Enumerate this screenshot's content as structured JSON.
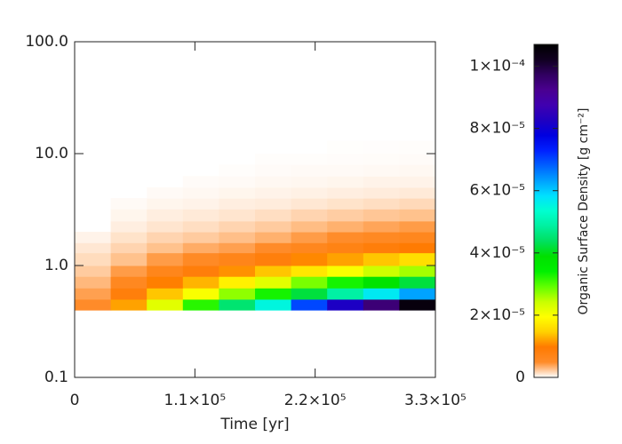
{
  "chart_data": {
    "type": "heatmap",
    "xlabel": "Time [yr]",
    "colorbar_label": "Organic Surface Density [g cm⁻²]",
    "xlim": [
      0,
      330000
    ],
    "xticks": [
      0,
      {
        "value": 110000,
        "label": "1.1×10⁵"
      },
      {
        "value": 220000,
        "label": "2.2×10⁵"
      },
      {
        "value": 330000,
        "label": "3.3×10⁵"
      }
    ],
    "ylim": [
      0.1,
      100
    ],
    "yscale": "log",
    "yticks": [
      0.1,
      {
        "value": 1,
        "label": "1.0"
      },
      {
        "value": 10,
        "label": "10.0"
      },
      {
        "value": 100,
        "label": "100.0"
      }
    ],
    "zlim": [
      0,
      0.000107
    ],
    "zticks": [
      0,
      {
        "value": 2e-05,
        "label": "2×10⁻⁵"
      },
      {
        "value": 4e-05,
        "label": "4×10⁻⁵"
      },
      {
        "value": 6e-05,
        "label": "6×10⁻⁵"
      },
      {
        "value": 8e-05,
        "label": "8×10⁻⁵"
      },
      {
        "value": 0.0001,
        "label": "1×10⁻⁴"
      }
    ],
    "colormap": [
      "#ffffff",
      "#ff8c2a",
      "#ff7a00",
      "#ffd000",
      "#ffff00",
      "#c8ff00",
      "#60ff00",
      "#00f000",
      "#00e000",
      "#00e060",
      "#00f0a0",
      "#00ffd0",
      "#00e0ff",
      "#00a0ff",
      "#0060ff",
      "#0020ff",
      "#0000e0",
      "#2000c0",
      "#4000b0",
      "#4a0090",
      "#300060",
      "#100020",
      "#000000"
    ],
    "x_edges": [
      0,
      33000,
      66000,
      99000,
      132000,
      165000,
      198000,
      231000,
      264000,
      297000,
      330000
    ],
    "y_edges": [
      0.4,
      0.5,
      0.63,
      0.8,
      1.0,
      1.3,
      1.6,
      2.0,
      2.5,
      3.2,
      4.0,
      5.0,
      6.3,
      8.0,
      10,
      13
    ],
    "z": [
      [
        5e-06,
        1.2e-05,
        2.2e-05,
        3.2e-05,
        4.5e-05,
        5.5e-05,
        7e-05,
        8.2e-05,
        9.5e-05,
        0.000105
      ],
      [
        4e-06,
        8.4e-06,
        1.4e-05,
        2e-05,
        2.7e-05,
        3.3e-05,
        4.2e-05,
        4.9e-05,
        5.7e-05,
        6.3e-05
      ],
      [
        3e-06,
        6e-06,
        1e-05,
        1.3e-05,
        1.8e-05,
        2.2e-05,
        2.8e-05,
        3.3e-05,
        3.8e-05,
        4.2e-05
      ],
      [
        2.2e-06,
        4.2e-06,
        6.6e-06,
        8.6e-06,
        1.1e-05,
        1.4e-05,
        1.7e-05,
        2e-05,
        2.4e-05,
        2.6e-05
      ],
      [
        1.5e-06,
        2.6e-06,
        4.2e-06,
        5.4e-06,
        6.8e-06,
        8.3e-06,
        1.05e-05,
        1.2e-05,
        1.4e-05,
        1.6e-05
      ],
      [
        1e-06,
        1.8e-06,
        2.6e-06,
        3.5e-06,
        4e-06,
        5e-06,
        6.3e-06,
        7.4e-06,
        8.6e-06,
        9.5e-06
      ],
      [
        5e-07,
        1.2e-06,
        1.8e-06,
        2.2e-06,
        2.7e-06,
        3.3e-06,
        4.2e-06,
        4.9e-06,
        5.7e-06,
        6.3e-06
      ],
      [
        null,
        7e-07,
        1.1e-06,
        1.4e-06,
        1.8e-06,
        2.2e-06,
        2.8e-06,
        3.3e-06,
        3.8e-06,
        4.2e-06
      ],
      [
        null,
        4e-07,
        7e-07,
        9e-07,
        1.1e-06,
        1.4e-06,
        1.8e-06,
        2.1e-06,
        2.4e-06,
        2.6e-06
      ],
      [
        null,
        2e-07,
        4e-07,
        5e-07,
        7e-07,
        8e-07,
        1e-06,
        1.2e-06,
        1.4e-06,
        1.6e-06
      ],
      [
        null,
        null,
        2e-07,
        3e-07,
        4e-07,
        5e-07,
        6e-07,
        7e-07,
        8e-07,
        9e-07
      ],
      [
        null,
        null,
        null,
        1.5e-07,
        2e-07,
        3e-07,
        3.5e-07,
        4e-07,
        5e-07,
        5e-07
      ],
      [
        null,
        null,
        null,
        null,
        1e-07,
        1.5e-07,
        2e-07,
        2e-07,
        2.5e-07,
        3e-07
      ],
      [
        null,
        null,
        null,
        null,
        null,
        8e-08,
        1e-07,
        1.2e-07,
        1.4e-07,
        1.5e-07
      ],
      [
        null,
        null,
        null,
        null,
        null,
        null,
        null,
        6e-08,
        7e-08,
        8e-08
      ]
    ]
  }
}
